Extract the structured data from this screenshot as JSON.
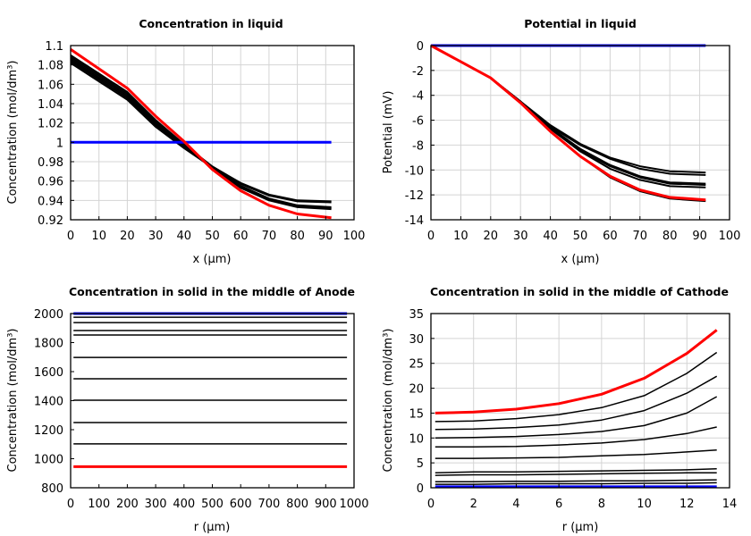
{
  "chart_data": [
    {
      "type": "line",
      "title": "Concentration in liquid",
      "xlabel": "x (µm)",
      "ylabel": "Concentration (mol/dm³)",
      "xlim": [
        0,
        100
      ],
      "ylim": [
        0.92,
        1.1
      ],
      "xticks": [
        0,
        10,
        20,
        30,
        40,
        50,
        60,
        70,
        80,
        90,
        100
      ],
      "yticks": [
        0.92,
        0.94,
        0.96,
        0.98,
        1,
        1.02,
        1.04,
        1.06,
        1.08,
        1.1
      ],
      "ytick_labels": [
        "0.92",
        "0.94",
        "0.96",
        "0.98",
        "1",
        "1.02",
        "1.04",
        "1.06",
        "1.08",
        "1.1"
      ],
      "grid": true,
      "x": [
        0,
        10,
        20,
        30,
        40,
        50,
        60,
        70,
        80,
        92
      ],
      "series": [
        {
          "color": "#000000",
          "values": [
            1.09,
            1.071,
            1.052,
            1.023,
            0.998,
            0.975,
            0.958,
            0.946,
            0.94,
            0.939
          ]
        },
        {
          "color": "#000000",
          "values": [
            1.088,
            1.069,
            1.05,
            1.021,
            0.997,
            0.975,
            0.957,
            0.945,
            0.939,
            0.938
          ]
        },
        {
          "color": "#000000",
          "values": [
            1.086,
            1.067,
            1.048,
            1.019,
            0.996,
            0.974,
            0.955,
            0.942,
            0.935,
            0.933
          ]
        },
        {
          "color": "#000000",
          "values": [
            1.084,
            1.065,
            1.046,
            1.017,
            0.995,
            0.974,
            0.954,
            0.941,
            0.934,
            0.932
          ]
        },
        {
          "color": "#000000",
          "values": [
            1.082,
            1.063,
            1.044,
            1.016,
            0.994,
            0.974,
            0.953,
            0.94,
            0.933,
            0.931
          ]
        },
        {
          "color": "#0000ff",
          "values": [
            1,
            1,
            1,
            1,
            1,
            1,
            1,
            1,
            1,
            1
          ]
        },
        {
          "color": "#ff0000",
          "values": [
            1.096,
            1.076,
            1.056,
            1.027,
            1.001,
            0.972,
            0.95,
            0.935,
            0.926,
            0.922
          ]
        }
      ]
    },
    {
      "type": "line",
      "title": "Potential in liquid",
      "xlabel": "x (µm)",
      "ylabel": "Potential (mV)",
      "xlim": [
        0,
        100
      ],
      "ylim": [
        -14,
        0
      ],
      "xticks": [
        0,
        10,
        20,
        30,
        40,
        50,
        60,
        70,
        80,
        90,
        100
      ],
      "yticks": [
        -14,
        -12,
        -10,
        -8,
        -6,
        -4,
        -2,
        0
      ],
      "ytick_labels": [
        "-14",
        "-12",
        "-10",
        "-8",
        "-6",
        "-4",
        "-2",
        "0"
      ],
      "grid": true,
      "x": [
        0,
        10,
        20,
        30,
        40,
        50,
        60,
        70,
        80,
        92
      ],
      "series": [
        {
          "color": "#000000",
          "values": [
            0,
            -1.3,
            -2.6,
            -4.5,
            -6.4,
            -7.9,
            -9.0,
            -9.7,
            -10.1,
            -10.2
          ]
        },
        {
          "color": "#000000",
          "values": [
            0,
            -1.3,
            -2.6,
            -4.5,
            -6.5,
            -8.0,
            -9.1,
            -9.9,
            -10.3,
            -10.4
          ]
        },
        {
          "color": "#000000",
          "values": [
            0,
            -1.3,
            -2.6,
            -4.5,
            -6.6,
            -8.3,
            -9.6,
            -10.5,
            -11.0,
            -11.1
          ]
        },
        {
          "color": "#000000",
          "values": [
            0,
            -1.3,
            -2.6,
            -4.5,
            -6.6,
            -8.4,
            -9.7,
            -10.6,
            -11.1,
            -11.2
          ]
        },
        {
          "color": "#000000",
          "values": [
            0,
            -1.3,
            -2.6,
            -4.5,
            -6.7,
            -8.5,
            -9.9,
            -10.8,
            -11.3,
            -11.4
          ]
        },
        {
          "color": "#000000",
          "values": [
            0,
            -1.3,
            -2.6,
            -4.6,
            -6.9,
            -8.9,
            -10.6,
            -11.7,
            -12.3,
            -12.5
          ]
        },
        {
          "color": "#0000ff",
          "values": [
            0,
            0,
            0,
            0,
            0,
            0,
            0,
            0,
            0,
            0
          ]
        },
        {
          "color": "#ff0000",
          "values": [
            0,
            -1.3,
            -2.6,
            -4.6,
            -6.9,
            -8.9,
            -10.5,
            -11.6,
            -12.2,
            -12.4
          ]
        }
      ]
    },
    {
      "type": "line",
      "title": "Concentration in solid in the middle of Anode",
      "xlabel": "r (µm)",
      "ylabel": "Concentration (mol/dm³)",
      "xlim": [
        0,
        1000
      ],
      "ylim": [
        800,
        2000
      ],
      "xticks": [
        0,
        100,
        200,
        300,
        400,
        500,
        600,
        700,
        800,
        900,
        1000
      ],
      "yticks": [
        800,
        1000,
        1200,
        1400,
        1600,
        1800,
        2000
      ],
      "ytick_labels": [
        "800",
        "1000",
        "1200",
        "1400",
        "1600",
        "1800",
        "2000"
      ],
      "grid": false,
      "x": [
        10,
        975
      ],
      "series": [
        {
          "color": "#000000",
          "values": [
            1975,
            1975
          ]
        },
        {
          "color": "#000000",
          "values": [
            1938,
            1938
          ]
        },
        {
          "color": "#000000",
          "values": [
            1883,
            1883
          ]
        },
        {
          "color": "#000000",
          "values": [
            1852,
            1852
          ]
        },
        {
          "color": "#000000",
          "values": [
            1698,
            1698
          ]
        },
        {
          "color": "#000000",
          "values": [
            1551,
            1551
          ]
        },
        {
          "color": "#000000",
          "values": [
            1403,
            1403
          ]
        },
        {
          "color": "#000000",
          "values": [
            1249,
            1249
          ]
        },
        {
          "color": "#000000",
          "values": [
            1102,
            1102
          ]
        },
        {
          "color": "#0000ff",
          "values": [
            2000,
            2000
          ]
        },
        {
          "color": "#ff0000",
          "values": [
            945,
            945
          ]
        }
      ]
    },
    {
      "type": "line",
      "title": "Concentration in solid in the middle of Cathode",
      "xlabel": "r (µm)",
      "ylabel": "Concentration (mol/dm³)",
      "xlim": [
        0,
        14
      ],
      "ylim": [
        0,
        35
      ],
      "xticks": [
        0,
        2,
        4,
        6,
        8,
        10,
        12,
        14
      ],
      "yticks": [
        0,
        5,
        10,
        15,
        20,
        25,
        30,
        35
      ],
      "ytick_labels": [
        "0",
        "5",
        "10",
        "15",
        "20",
        "25",
        "30",
        "35"
      ],
      "grid": true,
      "x": [
        0.2,
        2,
        4,
        6,
        8,
        10,
        12,
        13.4
      ],
      "series": [
        {
          "color": "#000000",
          "values": [
            13.3,
            13.4,
            13.9,
            14.7,
            16.1,
            18.5,
            23,
            27.2
          ]
        },
        {
          "color": "#000000",
          "values": [
            11.7,
            11.8,
            12.1,
            12.6,
            13.6,
            15.5,
            19,
            22.4
          ]
        },
        {
          "color": "#000000",
          "values": [
            10,
            10.1,
            10.3,
            10.7,
            11.3,
            12.5,
            15,
            18.3
          ]
        },
        {
          "color": "#000000",
          "values": [
            8.2,
            8.2,
            8.3,
            8.6,
            9.0,
            9.7,
            10.9,
            12.2
          ]
        },
        {
          "color": "#000000",
          "values": [
            5.9,
            5.9,
            6.0,
            6.1,
            6.4,
            6.7,
            7.2,
            7.6
          ]
        },
        {
          "color": "#000000",
          "values": [
            3.0,
            3.2,
            3.2,
            3.3,
            3.4,
            3.5,
            3.6,
            3.8
          ]
        },
        {
          "color": "#000000",
          "values": [
            2.5,
            2.6,
            2.6,
            2.7,
            2.8,
            2.9,
            3.0,
            3.0
          ]
        },
        {
          "color": "#000000",
          "values": [
            1.2,
            1.2,
            1.3,
            1.3,
            1.4,
            1.4,
            1.5,
            1.6
          ]
        },
        {
          "color": "#000000",
          "values": [
            0.7,
            0.7,
            0.8,
            0.8,
            0.8,
            0.9,
            0.9,
            1.0
          ]
        },
        {
          "color": "#0000ff",
          "values": [
            0.2,
            0.2,
            0.2,
            0.2,
            0.2,
            0.2,
            0.2,
            0.2
          ]
        },
        {
          "color": "#ff0000",
          "values": [
            15,
            15.2,
            15.8,
            16.9,
            18.8,
            22,
            27,
            31.7
          ]
        }
      ]
    }
  ]
}
